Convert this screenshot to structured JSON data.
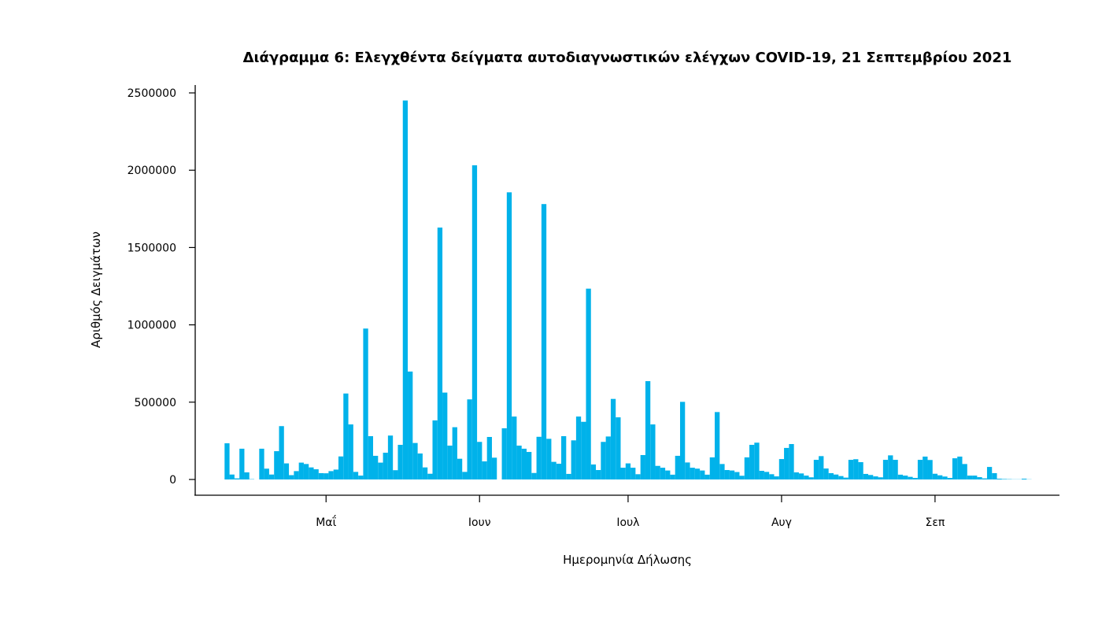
{
  "chart_data": {
    "type": "bar",
    "title": "Διάγραμμα 6: Ελεγχθέντα δείγματα αυτοδιαγνωστικών ελέγχων COVID-19, 21 Σεπτεμβρίου 2021",
    "xlabel": "Ημερομηνία Δήλωσης",
    "ylabel": "Αριθμός Δειγμάτων",
    "ylim": [
      0,
      2500000
    ],
    "yticks": [
      "0",
      "500000",
      "1000000",
      "1500000",
      "2000000",
      "2500000"
    ],
    "ytick_values": [
      0,
      500000,
      1000000,
      1500000,
      2000000,
      2500000
    ],
    "xticks": [
      {
        "label": "Μαΐ",
        "date": "2021-05-01"
      },
      {
        "label": "Ιουν",
        "date": "2021-06-01"
      },
      {
        "label": "Ιουλ",
        "date": "2021-07-01"
      },
      {
        "label": "Αυγ",
        "date": "2021-08-01"
      },
      {
        "label": "Σεπ",
        "date": "2021-09-01"
      }
    ],
    "start_date": "2021-04-11",
    "end_date": "2021-09-20",
    "bar_color": "#00b2ea",
    "grid": false,
    "values": [
      234000,
      32000,
      7000,
      199000,
      46000,
      2000,
      0,
      199000,
      70000,
      32000,
      183000,
      345000,
      104000,
      28000,
      54000,
      109000,
      100000,
      78000,
      66000,
      41000,
      40000,
      54000,
      64000,
      149000,
      556000,
      356000,
      49000,
      25000,
      976000,
      280000,
      153000,
      109000,
      173000,
      284000,
      60000,
      224000,
      2451000,
      698000,
      236000,
      168000,
      78000,
      37000,
      382000,
      1629000,
      562000,
      219000,
      338000,
      134000,
      49000,
      518000,
      2032000,
      243000,
      117000,
      275000,
      141000,
      0,
      331000,
      1857000,
      407000,
      219000,
      199000,
      178000,
      42000,
      276000,
      1781000,
      263000,
      114000,
      102000,
      280000,
      36000,
      253000,
      407000,
      373000,
      1234000,
      97000,
      61000,
      243000,
      278000,
      521000,
      402000,
      76000,
      104000,
      76000,
      34000,
      158000,
      636000,
      356000,
      88000,
      76000,
      58000,
      31000,
      153000,
      502000,
      110000,
      76000,
      70000,
      58000,
      31000,
      143000,
      436000,
      100000,
      61000,
      58000,
      48000,
      24000,
      143000,
      224000,
      238000,
      56000,
      49000,
      34000,
      20000,
      132000,
      204000,
      229000,
      46000,
      39000,
      25000,
      14000,
      127000,
      151000,
      71000,
      41000,
      32000,
      22000,
      12000,
      127000,
      131000,
      112000,
      36000,
      29000,
      20000,
      14000,
      127000,
      156000,
      127000,
      31000,
      25000,
      17000,
      10000,
      127000,
      148000,
      126000,
      37000,
      27000,
      19000,
      10000,
      137000,
      148000,
      100000,
      25000,
      25000,
      15000,
      7000,
      81000,
      41000,
      5000,
      3000,
      2000,
      1000,
      1000,
      5000,
      1000
    ]
  }
}
